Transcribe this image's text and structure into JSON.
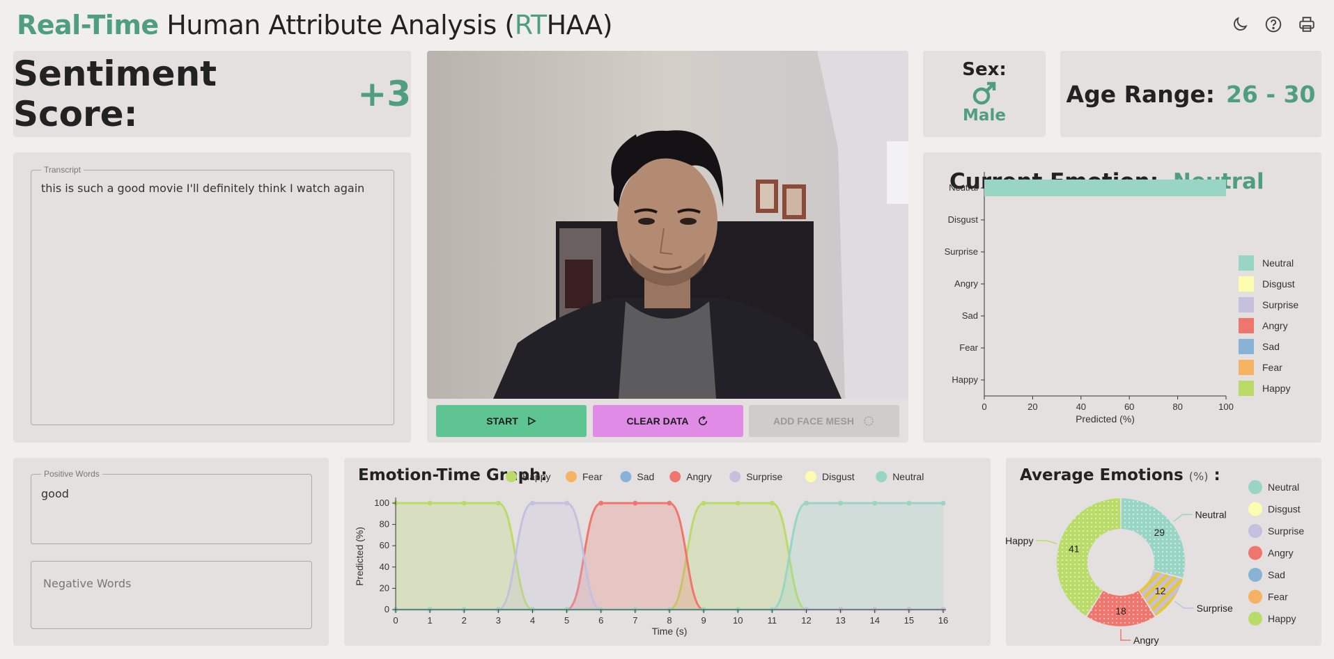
{
  "header": {
    "title_accent": "Real-Time",
    "title_main": " Human Attribute Analysis (",
    "title_abbr_accent": "RT",
    "title_abbr_rest": "HAA",
    "title_close": ")"
  },
  "sentiment": {
    "label": "Sentiment Score:",
    "value": "+3"
  },
  "transcript": {
    "legend": "Transcript",
    "text": "this is such a good movie I'll definitely think I watch again"
  },
  "sex": {
    "label": "Sex:",
    "value": "Male",
    "icon": "male-icon"
  },
  "age": {
    "label": "Age Range:",
    "value": "26 - 30"
  },
  "buttons": {
    "start": "START",
    "clear": "CLEAR DATA",
    "mesh": "ADD FACE MESH"
  },
  "current_emotion": {
    "label": "Current Emotion:",
    "value": "Neutral"
  },
  "colors": {
    "accent": "#4f9e80",
    "Neutral": "#98d5c5",
    "Disgust": "#fdfdb0",
    "Surprise": "#c4c0de",
    "Angry": "#ef766c",
    "Sad": "#88b3d6",
    "Fear": "#f4b262",
    "Happy": "#b9dc69"
  },
  "positive_words": {
    "legend": "Positive Words",
    "text": "good"
  },
  "negative_words": {
    "placeholder": "Negative Words"
  },
  "emotion_time": {
    "title": "Emotion-Time Graph:"
  },
  "average": {
    "title": "Average Emotions",
    "unit": "(%)",
    "colon": " :"
  },
  "chart_data": [
    {
      "type": "bar",
      "orientation": "horizontal",
      "categories": [
        "Neutral",
        "Disgust",
        "Surprise",
        "Angry",
        "Sad",
        "Fear",
        "Happy"
      ],
      "values": [
        100,
        0,
        0,
        0,
        0,
        0,
        0
      ],
      "xlabel": "Predicted (%)",
      "xlim": [
        0,
        100
      ],
      "xticks": [
        "0",
        "20",
        "40",
        "60",
        "80",
        "100"
      ],
      "legend": [
        "Neutral",
        "Disgust",
        "Surprise",
        "Angry",
        "Sad",
        "Fear",
        "Happy"
      ],
      "legend_position": "right"
    },
    {
      "type": "line",
      "x": [
        0,
        1,
        2,
        3,
        4,
        5,
        6,
        7,
        8,
        9,
        10,
        11,
        12,
        13,
        14,
        15,
        16
      ],
      "series": [
        {
          "name": "Happy",
          "values": [
            100,
            100,
            100,
            100,
            0,
            0,
            0,
            0,
            0,
            100,
            100,
            100,
            0,
            0,
            0,
            0,
            0
          ]
        },
        {
          "name": "Fear",
          "values": [
            0,
            0,
            0,
            0,
            0,
            0,
            0,
            0,
            0,
            0,
            0,
            0,
            0,
            0,
            0,
            0,
            0
          ]
        },
        {
          "name": "Sad",
          "values": [
            0,
            0,
            0,
            0,
            0,
            0,
            0,
            0,
            0,
            0,
            0,
            0,
            0,
            0,
            0,
            0,
            0
          ]
        },
        {
          "name": "Angry",
          "values": [
            0,
            0,
            0,
            0,
            0,
            0,
            100,
            100,
            100,
            0,
            0,
            0,
            0,
            0,
            0,
            0,
            0
          ]
        },
        {
          "name": "Surprise",
          "values": [
            0,
            0,
            0,
            0,
            100,
            100,
            0,
            0,
            0,
            0,
            0,
            0,
            0,
            0,
            0,
            0,
            0
          ]
        },
        {
          "name": "Disgust",
          "values": [
            0,
            0,
            0,
            0,
            0,
            0,
            0,
            0,
            0,
            0,
            0,
            0,
            0,
            0,
            0,
            0,
            0
          ]
        },
        {
          "name": "Neutral",
          "values": [
            0,
            0,
            0,
            0,
            0,
            0,
            0,
            0,
            0,
            0,
            0,
            0,
            100,
            100,
            100,
            100,
            100
          ]
        }
      ],
      "xlabel": "Time (s)",
      "ylabel": "Predicted (%)",
      "ylim": [
        0,
        100
      ],
      "yticks": [
        "0",
        "20",
        "40",
        "60",
        "80",
        "100"
      ],
      "legend_position": "top"
    },
    {
      "type": "pie",
      "variant": "donut",
      "slices": [
        {
          "label": "Neutral",
          "value": 29
        },
        {
          "label": "Surprise",
          "value": 12
        },
        {
          "label": "Angry",
          "value": 18
        },
        {
          "label": "Happy",
          "value": 41
        }
      ],
      "legend": [
        "Neutral",
        "Disgust",
        "Surprise",
        "Angry",
        "Sad",
        "Fear",
        "Happy"
      ],
      "legend_position": "right"
    }
  ]
}
